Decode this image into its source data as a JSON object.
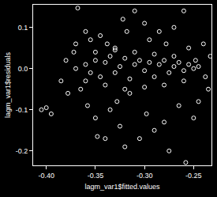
{
  "chart_data": {
    "type": "scatter",
    "x_label": "lagm_var1$fitted.values",
    "y_label": "lagm_var1$residuals",
    "marker": "circle-open",
    "color": "#ffffff",
    "grid": false,
    "xlim": [
      -0.4134,
      -0.2318
    ],
    "ylim": [
      -0.235,
      0.155
    ],
    "xticks": [
      {
        "value": -0.4,
        "label": "-0.40"
      },
      {
        "value": -0.35,
        "label": "-0.35"
      },
      {
        "value": -0.3,
        "label": "-0.30"
      },
      {
        "value": -0.25,
        "label": "-0.25"
      }
    ],
    "yticks": [
      -0.2,
      -0.1,
      {
        "value": 0,
        "label": "0.0"
      },
      0.1
    ],
    "x": [
      -0.405,
      -0.4,
      -0.395,
      -0.385,
      -0.38,
      -0.378,
      -0.372,
      -0.37,
      -0.368,
      -0.365,
      -0.36,
      -0.358,
      -0.355,
      -0.35,
      -0.348,
      -0.345,
      -0.34,
      -0.338,
      -0.335,
      -0.33,
      -0.328,
      -0.325,
      -0.322,
      -0.32,
      -0.318,
      -0.315,
      -0.31,
      -0.305,
      -0.3,
      -0.298,
      -0.295,
      -0.29,
      -0.285,
      -0.28,
      -0.278,
      -0.275,
      -0.27,
      -0.265,
      -0.26,
      -0.258,
      -0.255,
      -0.25,
      -0.248,
      -0.245,
      -0.24,
      -0.235,
      -0.238,
      -0.233,
      -0.36,
      -0.355,
      -0.35,
      -0.345,
      -0.34,
      -0.335,
      -0.33,
      -0.325,
      -0.32,
      -0.315,
      -0.31,
      -0.305,
      -0.3,
      -0.295,
      -0.29,
      -0.285,
      -0.28,
      -0.275,
      -0.27,
      -0.265,
      -0.26,
      -0.255,
      -0.25,
      -0.245,
      -0.34,
      -0.33,
      -0.32,
      -0.31,
      -0.3,
      -0.29,
      -0.28,
      -0.27,
      -0.26,
      -0.35,
      -0.36,
      -0.37
    ],
    "values": [
      -0.1,
      -0.095,
      -0.11,
      -0.03,
      0.02,
      -0.06,
      0.04,
      0.06,
      0.147,
      -0.05,
      0.09,
      -0.09,
      0.07,
      -0.12,
      -0.165,
      0.08,
      -0.17,
      0.06,
      -0.1,
      0.05,
      -0.08,
      -0.14,
      0.12,
      -0.19,
      0.09,
      -0.06,
      0.14,
      -0.17,
      0.11,
      -0.11,
      0.07,
      -0.15,
      0.09,
      -0.13,
      0.06,
      -0.2,
      0.1,
      -0.09,
      0.14,
      -0.228,
      0.05,
      -0.12,
      0.02,
      -0.08,
      0.06,
      -0.05,
      -0.02,
      0.03,
      0.01,
      -0.01,
      0.02,
      -0.02,
      0.015,
      0.03,
      -0.01,
      0.005,
      0.025,
      -0.025,
      0.01,
      0.02,
      -0.005,
      0.015,
      -0.02,
      0.01,
      0.02,
      -0.01,
      0.005,
      0.015,
      -0.005,
      0.01,
      0,
      0.005,
      -0.04,
      0.045,
      -0.05,
      0.04,
      -0.045,
      0.035,
      -0.04,
      0.03,
      -0.03,
      0.04,
      -0.03,
      0
    ]
  }
}
